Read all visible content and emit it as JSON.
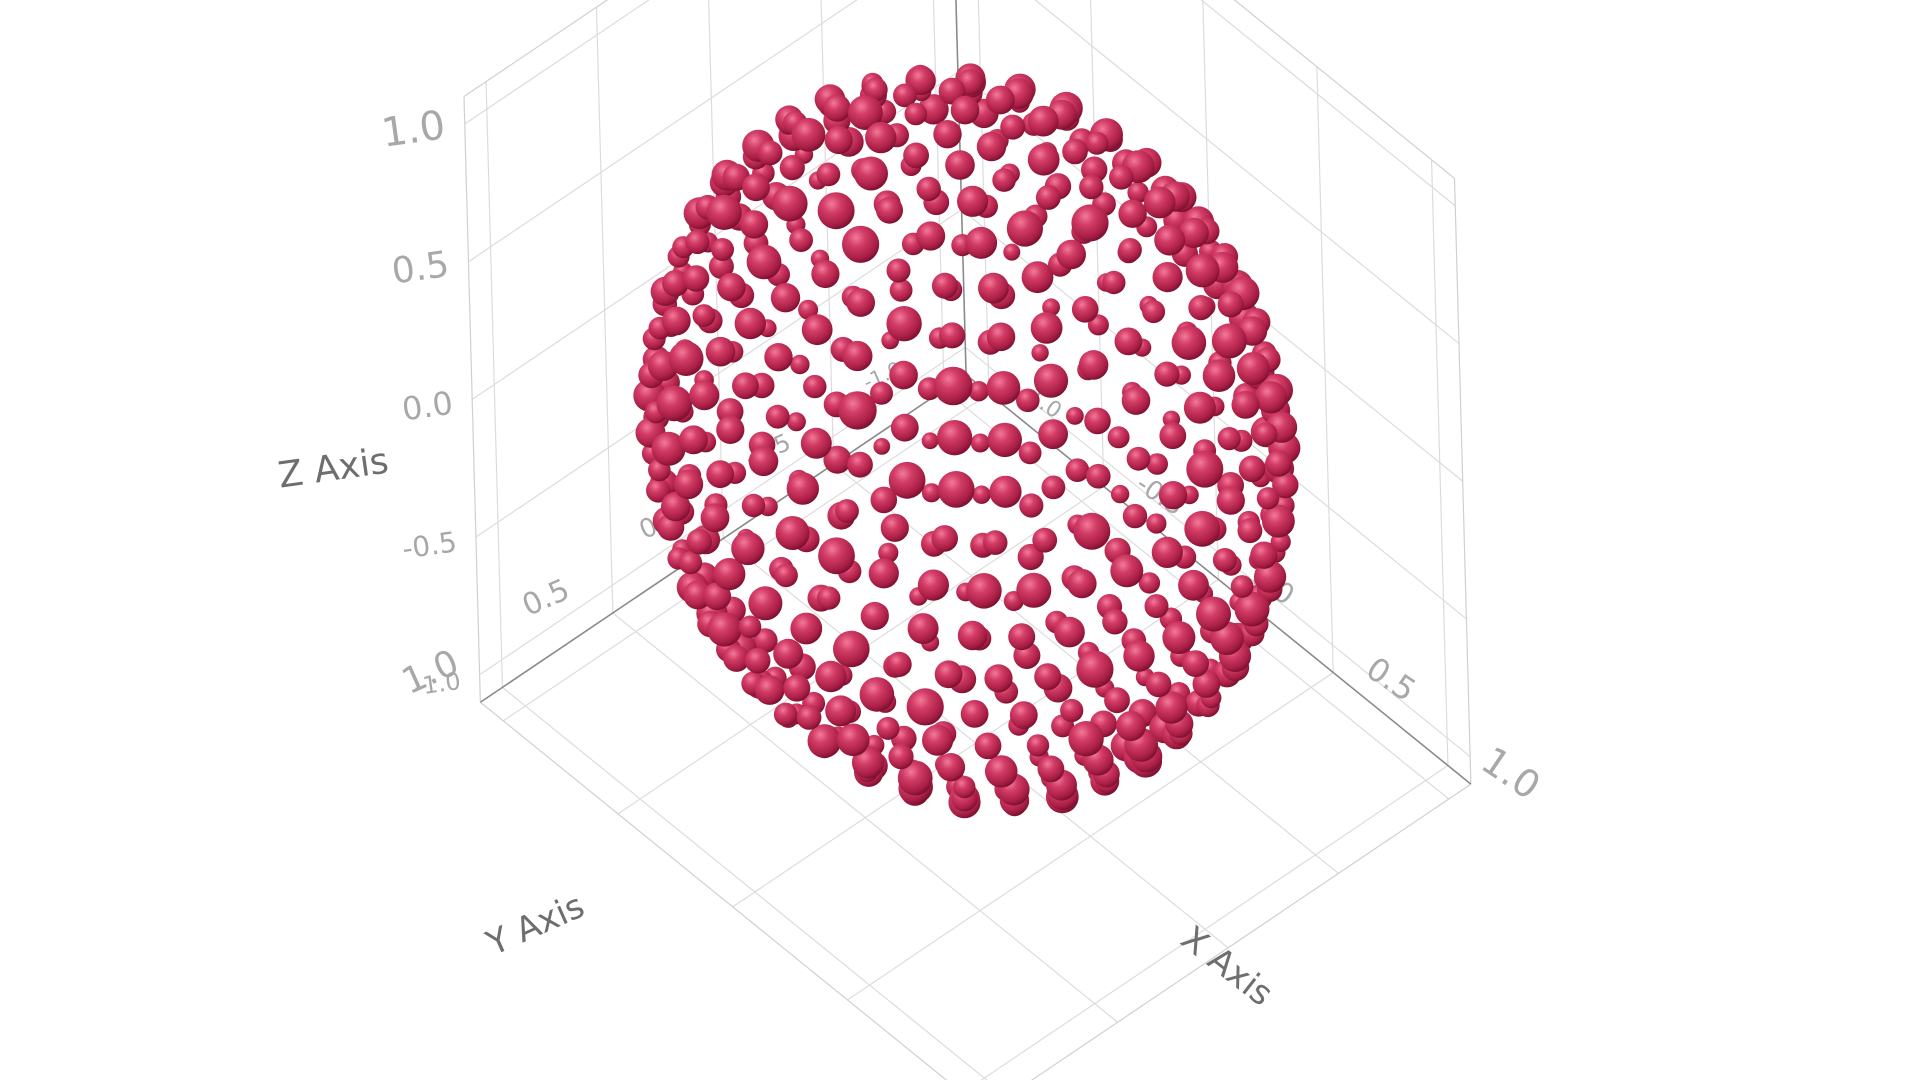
{
  "chart_data": {
    "type": "scatter3d",
    "title": "",
    "xlabel": "X Axis",
    "ylabel": "Y Axis",
    "zlabel": "Z Axis",
    "xlim": [
      -1.1,
      1.1
    ],
    "ylim": [
      -1.1,
      1.1
    ],
    "zlim": [
      -1.1,
      1.1
    ],
    "grid": true,
    "x_ticks": [
      "-1.0",
      "-0.5",
      "0.0",
      "0.5",
      "1.0"
    ],
    "y_ticks": [
      "-1.0",
      "-0.5",
      "0.0",
      "0.5",
      "1.0"
    ],
    "z_ticks": [
      "-1.0",
      "-0.5",
      "0.0",
      "0.5",
      "1.0"
    ],
    "marker_color": "#c8325a",
    "marker_shape": "sphere",
    "surface": {
      "shape": "sphere",
      "radius": 1.0,
      "center": [
        0,
        0,
        0
      ],
      "latitude_rings": 22,
      "points_per_ring": 40,
      "marker_size_range": [
        0.6,
        1.0
      ]
    }
  }
}
